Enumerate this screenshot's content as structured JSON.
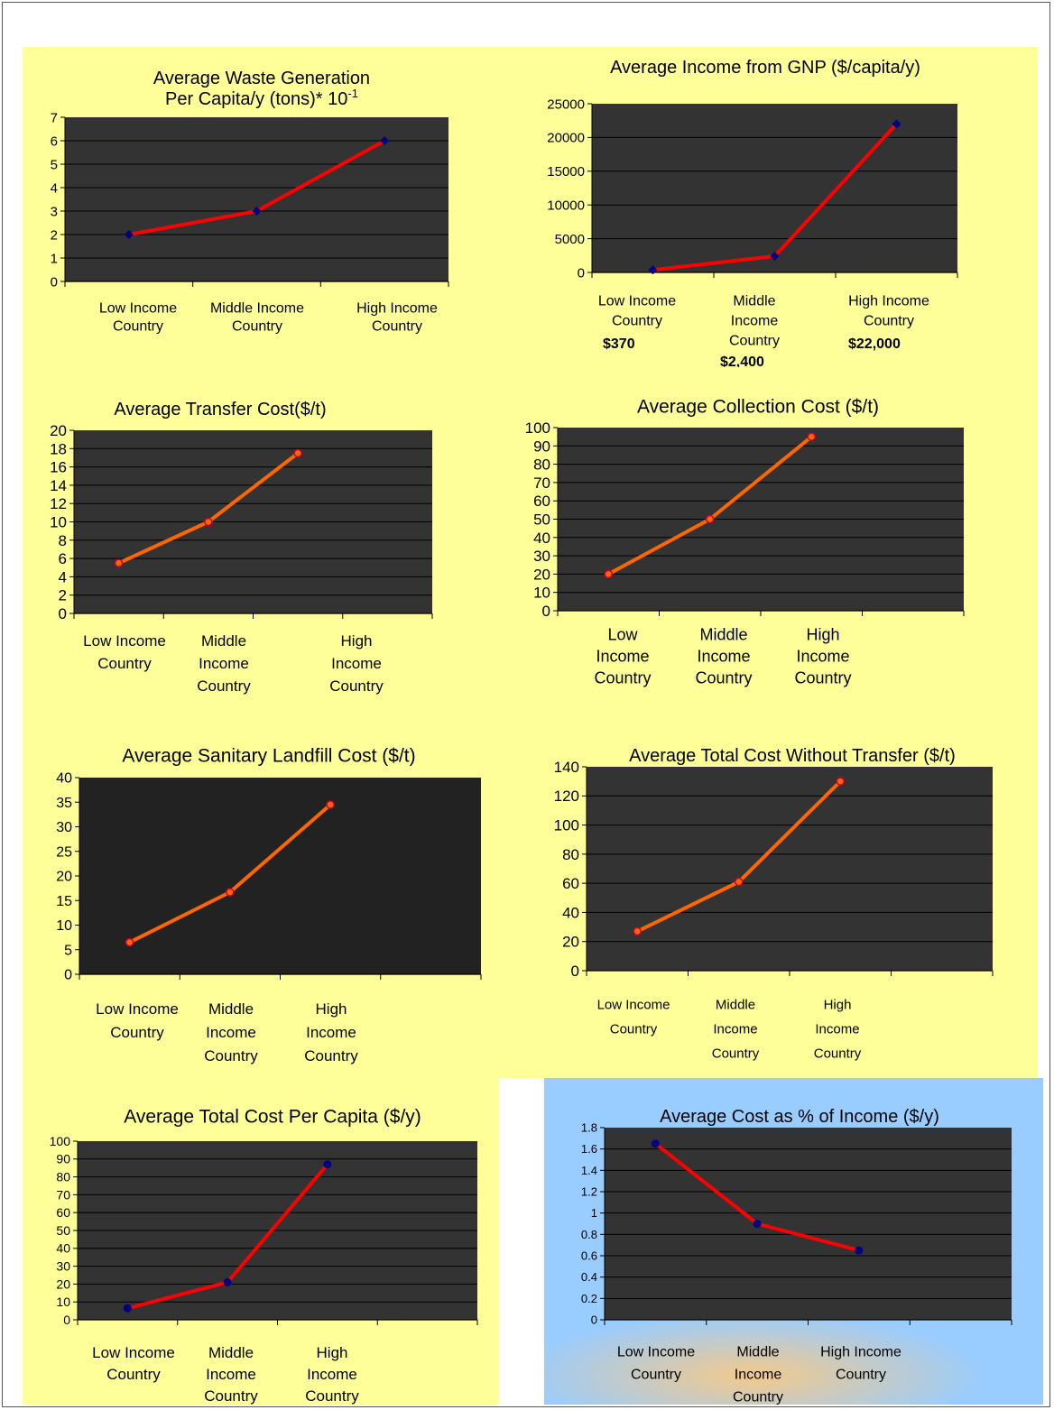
{
  "colors": {
    "panel_bg": "#ffff99",
    "panel_bg_blue": "#99ccff",
    "plot_bg": "#333333",
    "line_red": "#ff0000",
    "line_orange": "#ff6600",
    "marker_navy": "#000080"
  },
  "chart_data": [
    {
      "id": "waste",
      "type": "line",
      "title": [
        "Average Waste Generation",
        "Per Capita/y (tons)* 10"
      ],
      "title_superscript": "-1",
      "categories": [
        [
          "Low Income",
          "Country"
        ],
        [
          "Middle Income",
          "Country"
        ],
        [
          "High Income",
          "Country"
        ]
      ],
      "values": [
        2,
        3,
        6
      ],
      "ylim": [
        0,
        7
      ],
      "yticks": [
        "0",
        "1",
        "2",
        "3",
        "4",
        "5",
        "6",
        "7"
      ],
      "grid": true,
      "line_color": "#ff0000",
      "marker": "diamond"
    },
    {
      "id": "gnp",
      "type": "line",
      "title": [
        "Average Income from GNP ($/capita/y)"
      ],
      "categories": [
        [
          "Low Income",
          "Country"
        ],
        [
          "Middle",
          "Income",
          "Country"
        ],
        [
          "High Income",
          "Country"
        ]
      ],
      "category_values": [
        "$370",
        "$2,400",
        "$22,000"
      ],
      "values": [
        370,
        2400,
        22000
      ],
      "ylim": [
        0,
        25000
      ],
      "yticks": [
        "0",
        "5000",
        "10000",
        "15000",
        "20000",
        "25000"
      ],
      "grid": true,
      "line_color": "#ff0000",
      "marker": "diamond"
    },
    {
      "id": "transfer",
      "type": "line",
      "title": [
        "Average Transfer Cost($/t)"
      ],
      "categories": [
        [
          "Low Income",
          "Country"
        ],
        [
          "Middle",
          "Income",
          "Country"
        ],
        [
          "High",
          "Income",
          "Country"
        ]
      ],
      "values": [
        5.5,
        10,
        17.5
      ],
      "ylim": [
        0,
        20
      ],
      "yticks": [
        "0",
        "2",
        "4",
        "6",
        "8",
        "10",
        "12",
        "14",
        "16",
        "18",
        "20"
      ],
      "grid": true,
      "line_color": "#ff6600",
      "marker": "circle"
    },
    {
      "id": "collection",
      "type": "line",
      "title": [
        "Average Collection Cost ($/t)"
      ],
      "categories": [
        [
          "Low",
          "Income",
          "Country"
        ],
        [
          "Middle",
          "Income",
          "Country"
        ],
        [
          "High",
          "Income",
          "Country"
        ]
      ],
      "values": [
        20,
        50,
        95
      ],
      "ylim": [
        0,
        100
      ],
      "yticks": [
        "0",
        "10",
        "20",
        "30",
        "40",
        "50",
        "60",
        "70",
        "80",
        "90",
        "100"
      ],
      "grid": true,
      "line_color": "#ff6600",
      "marker": "circle"
    },
    {
      "id": "landfill",
      "type": "line",
      "title": [
        "Average Sanitary Landfill Cost ($/t)"
      ],
      "categories": [
        [
          "Low Income",
          "Country"
        ],
        [
          "Middle",
          "Income",
          "Country"
        ],
        [
          "High",
          "Income",
          "Country"
        ]
      ],
      "values": [
        6.5,
        16.7,
        34.5
      ],
      "ylim": [
        0,
        40
      ],
      "yticks": [
        "0",
        "5",
        "10",
        "15",
        "20",
        "25",
        "30",
        "35",
        "40"
      ],
      "grid": false,
      "line_color": "#ff6600",
      "marker": "circle"
    },
    {
      "id": "total_no_transfer",
      "type": "line",
      "title": [
        "Average Total Cost Without Transfer ($/t)"
      ],
      "categories": [
        [
          "Low Income",
          "Country"
        ],
        [
          "Middle",
          "Income",
          "Country"
        ],
        [
          "High",
          "Income",
          "Country"
        ]
      ],
      "values": [
        27,
        61,
        130
      ],
      "ylim": [
        0,
        140
      ],
      "yticks": [
        "0",
        "20",
        "40",
        "60",
        "80",
        "100",
        "120",
        "140"
      ],
      "grid": true,
      "line_color": "#ff6600",
      "marker": "circle"
    },
    {
      "id": "per_capita",
      "type": "line",
      "title": [
        "Average Total Cost Per Capita ($/y)"
      ],
      "categories": [
        [
          "Low Income",
          "Country"
        ],
        [
          "Middle",
          "Income",
          "Country"
        ],
        [
          "High",
          "Income",
          "Country"
        ]
      ],
      "values": [
        6.5,
        21,
        87
      ],
      "ylim": [
        0,
        100
      ],
      "yticks": [
        "0",
        "10",
        "20",
        "30",
        "40",
        "50",
        "60",
        "70",
        "80",
        "90",
        "100"
      ],
      "grid": true,
      "line_color": "#ff0000",
      "marker": "dot"
    },
    {
      "id": "pct_income",
      "type": "line",
      "title": [
        "Average Cost as % of Income ($/y)"
      ],
      "categories": [
        [
          "Low Income",
          "Country"
        ],
        [
          "Middle",
          "Income",
          "Country"
        ],
        [
          "High Income",
          "Country"
        ]
      ],
      "values": [
        1.65,
        0.9,
        0.65
      ],
      "ylim": [
        0,
        1.8
      ],
      "yticks": [
        "0",
        "0.2",
        "0.4",
        "0.6",
        "0.8",
        "1",
        "1.2",
        "1.4",
        "1.6",
        "1.8"
      ],
      "grid": true,
      "line_color": "#ff0000",
      "marker": "dot"
    }
  ]
}
